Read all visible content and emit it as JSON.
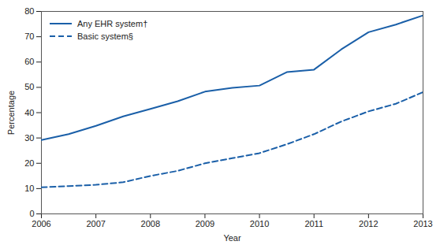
{
  "chart_data": {
    "type": "line",
    "xlabel": "Year",
    "ylabel": "Percentage",
    "x": [
      2006,
      2006.5,
      2007,
      2007.5,
      2008,
      2008.5,
      2009,
      2009.5,
      2010,
      2010.5,
      2011,
      2011.5,
      2012,
      2012.5,
      2013
    ],
    "series": [
      {
        "name": "Any EHR system†",
        "color": "#1a5fa8",
        "line_style": "solid",
        "values": [
          29.2,
          31.5,
          34.8,
          38.5,
          41.5,
          44.5,
          48.3,
          49.8,
          50.7,
          56.0,
          57.0,
          65.0,
          71.8,
          74.8,
          78.4
        ]
      },
      {
        "name": "Basic system§",
        "color": "#1a5fa8",
        "line_style": "dashed",
        "values": [
          10.5,
          11.0,
          11.5,
          12.5,
          15.0,
          17.0,
          20.0,
          22.0,
          24.0,
          27.5,
          31.5,
          36.5,
          40.5,
          43.5,
          48.1
        ]
      }
    ],
    "xlim": [
      2006,
      2013
    ],
    "xticks": [
      2006,
      2007,
      2008,
      2009,
      2010,
      2011,
      2012,
      2013
    ],
    "ylim": [
      0,
      80
    ],
    "yticks": [
      0,
      10,
      20,
      30,
      40,
      50,
      60,
      70,
      80
    ],
    "grid": false,
    "legend": "upper left"
  }
}
